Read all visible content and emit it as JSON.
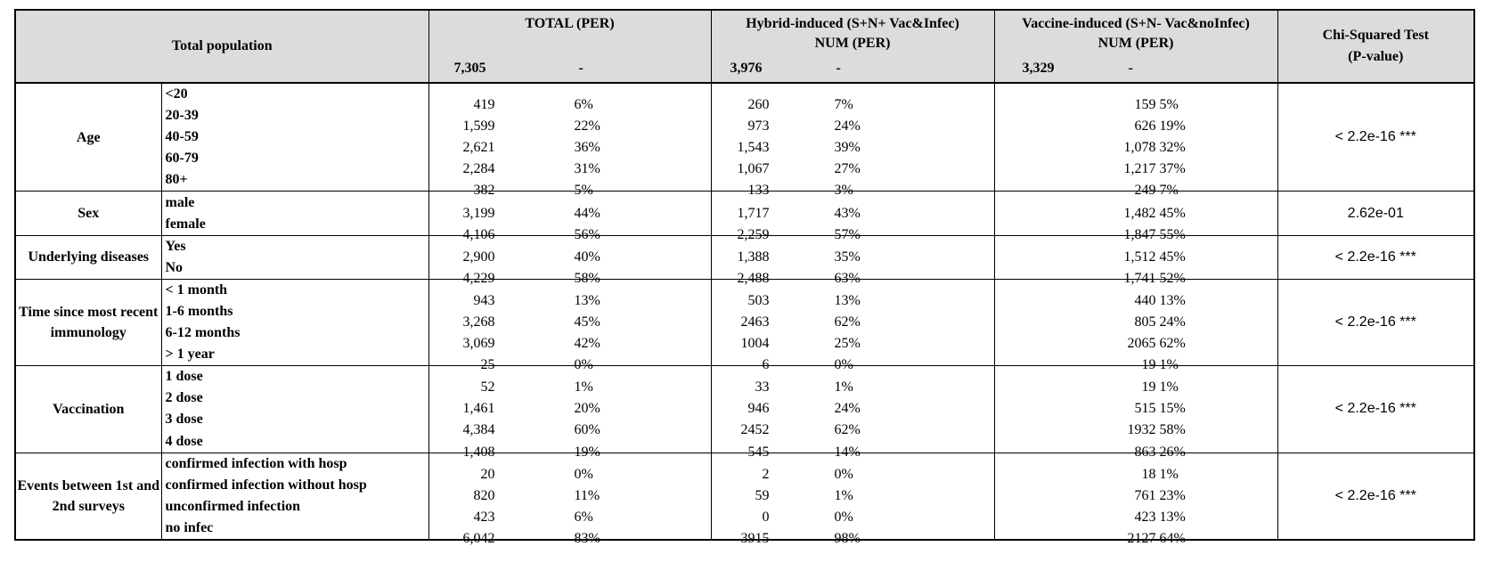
{
  "header": {
    "population_label": "Total population",
    "total": {
      "line1": "TOTAL (PER)",
      "count": "7,305",
      "dash": "-"
    },
    "hybrid": {
      "line1": "Hybrid-induced (S+N+ Vac&Infec)",
      "line2": "NUM (PER)",
      "count": "3,976",
      "dash": "-"
    },
    "vaccine": {
      "line1": "Vaccine-induced (S+N- Vac&noInfec)",
      "line2": "NUM (PER)",
      "count": "3,329",
      "dash": "-"
    },
    "chi": {
      "line1": "Chi-Squared Test",
      "line2": "(P-value)"
    }
  },
  "groups": [
    {
      "label": "Age",
      "p_value": "< 2.2e-16 ***",
      "rows": [
        {
          "sub": "<20",
          "total_n": "419",
          "total_p": "6%",
          "hyb_n": "260",
          "hyb_p": "7%",
          "vac_n": "159",
          "vac_p": "5%"
        },
        {
          "sub": "20-39",
          "total_n": "1,599",
          "total_p": "22%",
          "hyb_n": "973",
          "hyb_p": "24%",
          "vac_n": "626",
          "vac_p": "19%"
        },
        {
          "sub": "40-59",
          "total_n": "2,621",
          "total_p": "36%",
          "hyb_n": "1,543",
          "hyb_p": "39%",
          "vac_n": "1,078",
          "vac_p": "32%"
        },
        {
          "sub": "60-79",
          "total_n": "2,284",
          "total_p": "31%",
          "hyb_n": "1,067",
          "hyb_p": "27%",
          "vac_n": "1,217",
          "vac_p": "37%"
        },
        {
          "sub": "80+",
          "total_n": "382",
          "total_p": "5%",
          "hyb_n": "133",
          "hyb_p": "3%",
          "vac_n": "249",
          "vac_p": "7%"
        }
      ]
    },
    {
      "label": "Sex",
      "p_value": "2.62e-01",
      "rows": [
        {
          "sub": "male",
          "total_n": "3,199",
          "total_p": "44%",
          "hyb_n": "1,717",
          "hyb_p": "43%",
          "vac_n": "1,482",
          "vac_p": "45%"
        },
        {
          "sub": "female",
          "total_n": "4,106",
          "total_p": "56%",
          "hyb_n": "2,259",
          "hyb_p": "57%",
          "vac_n": "1,847",
          "vac_p": "55%"
        }
      ]
    },
    {
      "label": "Underlying diseases",
      "p_value": "< 2.2e-16 ***",
      "rows": [
        {
          "sub": "Yes",
          "total_n": "2,900",
          "total_p": "40%",
          "hyb_n": "1,388",
          "hyb_p": "35%",
          "vac_n": "1,512",
          "vac_p": "45%"
        },
        {
          "sub": "No",
          "total_n": "4,229",
          "total_p": "58%",
          "hyb_n": "2,488",
          "hyb_p": "63%",
          "vac_n": "1,741",
          "vac_p": "52%"
        }
      ]
    },
    {
      "label": "Time since most recent immunology",
      "p_value": "< 2.2e-16 ***",
      "rows": [
        {
          "sub": "< 1 month",
          "total_n": "943",
          "total_p": "13%",
          "hyb_n": "503",
          "hyb_p": "13%",
          "vac_n": "440",
          "vac_p": "13%"
        },
        {
          "sub": "1-6 months",
          "total_n": "3,268",
          "total_p": "45%",
          "hyb_n": "2463",
          "hyb_p": "62%",
          "vac_n": "805",
          "vac_p": "24%"
        },
        {
          "sub": "6-12 months",
          "total_n": "3,069",
          "total_p": "42%",
          "hyb_n": "1004",
          "hyb_p": "25%",
          "vac_n": "2065",
          "vac_p": "62%"
        },
        {
          "sub": "> 1 year",
          "total_n": "25",
          "total_p": "0%",
          "hyb_n": "6",
          "hyb_p": "0%",
          "vac_n": "19",
          "vac_p": "1%"
        }
      ]
    },
    {
      "label": "Vaccination",
      "p_value": "< 2.2e-16 ***",
      "rows": [
        {
          "sub": "1 dose",
          "total_n": "52",
          "total_p": "1%",
          "hyb_n": "33",
          "hyb_p": "1%",
          "vac_n": "19",
          "vac_p": "1%"
        },
        {
          "sub": "2 dose",
          "total_n": "1,461",
          "total_p": "20%",
          "hyb_n": "946",
          "hyb_p": "24%",
          "vac_n": "515",
          "vac_p": "15%"
        },
        {
          "sub": "3 dose",
          "total_n": "4,384",
          "total_p": "60%",
          "hyb_n": "2452",
          "hyb_p": "62%",
          "vac_n": "1932",
          "vac_p": "58%"
        },
        {
          "sub": "4 dose",
          "total_n": "1,408",
          "total_p": "19%",
          "hyb_n": "545",
          "hyb_p": "14%",
          "vac_n": "863",
          "vac_p": "26%"
        }
      ]
    },
    {
      "label": "Events between 1st and 2nd surveys",
      "p_value": "< 2.2e-16 ***",
      "rows": [
        {
          "sub": "confirmed infection with hosp",
          "total_n": "20",
          "total_p": "0%",
          "hyb_n": "2",
          "hyb_p": "0%",
          "vac_n": "18",
          "vac_p": "1%"
        },
        {
          "sub": "confirmed infection without hosp",
          "total_n": "820",
          "total_p": "11%",
          "hyb_n": "59",
          "hyb_p": "1%",
          "vac_n": "761",
          "vac_p": "23%"
        },
        {
          "sub": "unconfirmed infection",
          "total_n": "423",
          "total_p": "6%",
          "hyb_n": "0",
          "hyb_p": "0%",
          "vac_n": "423",
          "vac_p": "13%"
        },
        {
          "sub": "no infec",
          "total_n": "6,042",
          "total_p": "83%",
          "hyb_n": "3915",
          "hyb_p": "98%",
          "vac_n": "2127",
          "vac_p": "64%"
        }
      ]
    }
  ]
}
